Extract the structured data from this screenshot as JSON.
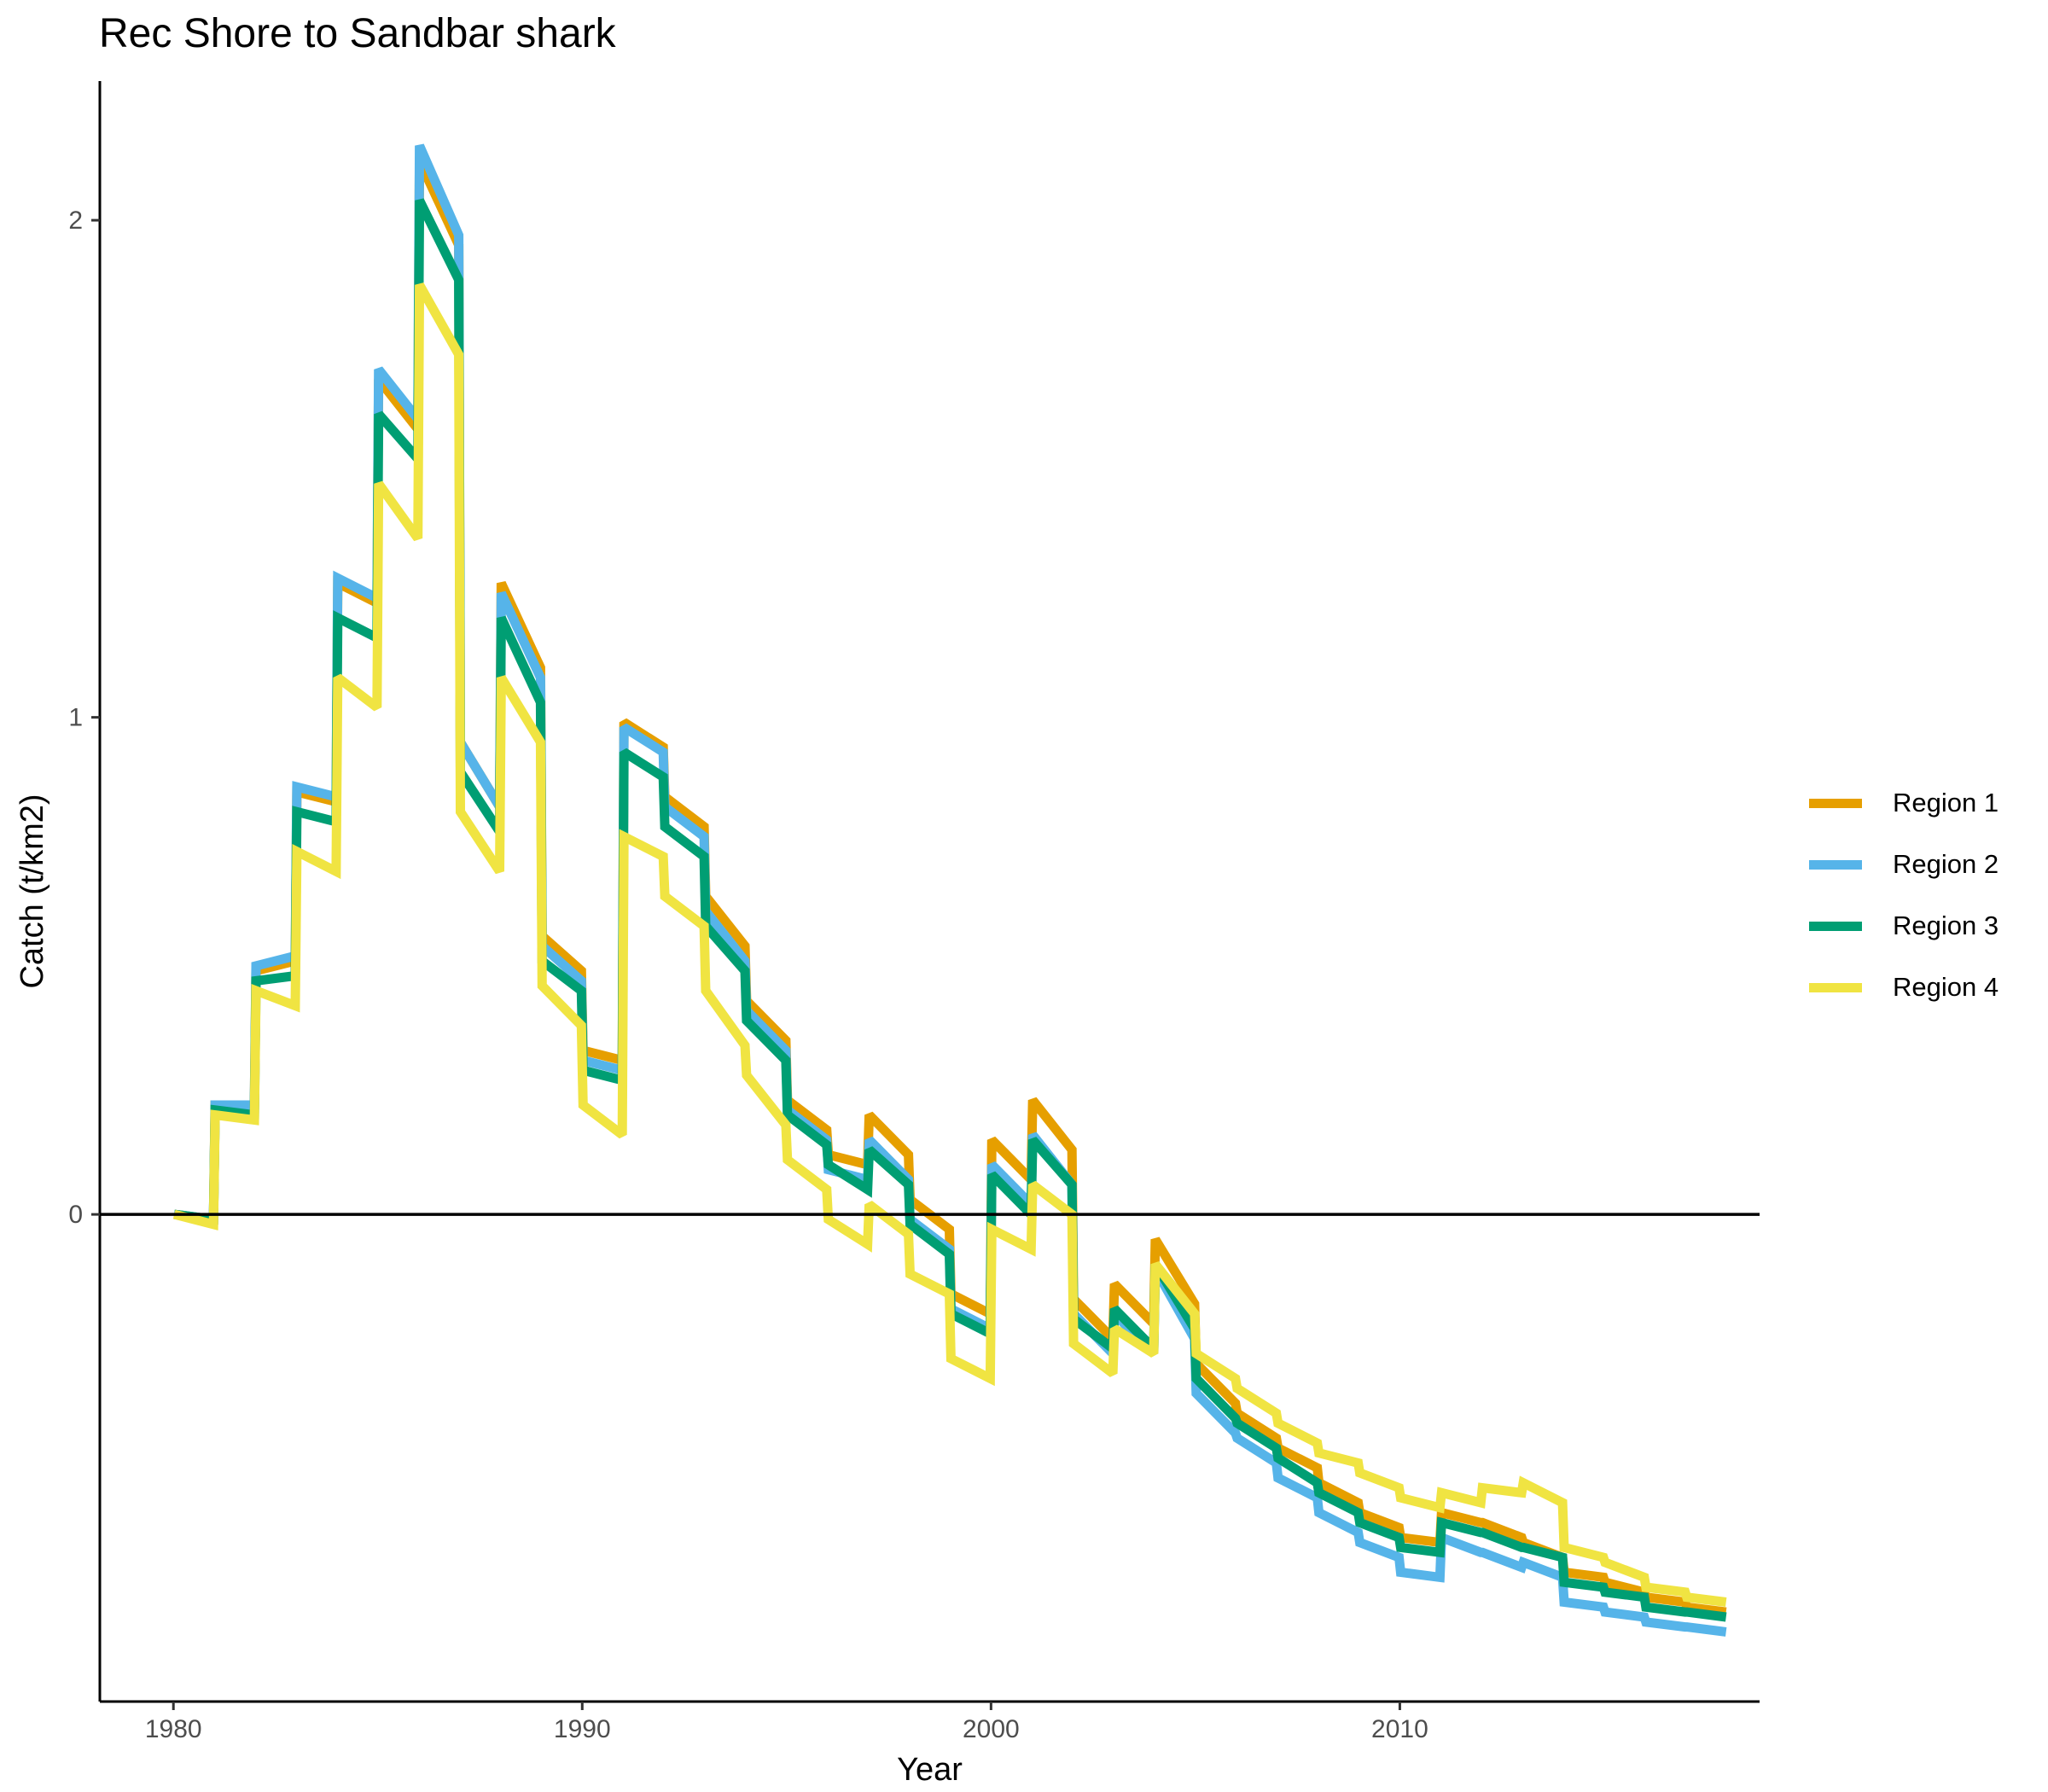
{
  "chart_data": {
    "type": "line",
    "title": "Rec Shore to Sandbar shark",
    "xlabel": "Year",
    "ylabel": "Catch (t/km2)",
    "xlim": [
      1978.2,
      2018.8
    ],
    "ylim": [
      -0.98,
      2.28
    ],
    "xticks": [
      1980,
      1990,
      2000,
      2010
    ],
    "yticks": [
      0,
      1,
      2
    ],
    "reference_line_y": 0,
    "legend_position": "right",
    "grid": false,
    "x": [
      1980,
      1981,
      1982,
      1983,
      1984,
      1985,
      1986,
      1987,
      1988,
      1989,
      1990,
      1991,
      1992,
      1993,
      1994,
      1995,
      1996,
      1997,
      1998,
      1999,
      2000,
      2001,
      2002,
      2003,
      2004,
      2005,
      2006,
      2007,
      2008,
      2009,
      2010,
      2011,
      2012,
      2013,
      2014,
      2015,
      2016,
      2017
    ],
    "series": [
      {
        "name": "Region 1",
        "color": "#E69F00",
        "start": [
          0,
          0.22,
          0.49,
          0.85,
          1.27,
          1.68,
          2.12,
          0.95,
          1.27,
          0.56,
          0.33,
          0.99,
          0.84,
          0.64,
          0.43,
          0.23,
          0.12,
          0.2,
          0.03,
          -0.16,
          0.15,
          0.23,
          -0.17,
          -0.14,
          -0.05,
          -0.3,
          -0.4,
          -0.47,
          -0.54,
          -0.6,
          -0.65,
          -0.6,
          -0.62,
          -0.66,
          -0.72,
          -0.74,
          -0.77,
          -0.79
        ],
        "end": [
          -0.01,
          0.22,
          0.51,
          0.83,
          1.23,
          1.58,
          1.95,
          0.82,
          1.1,
          0.49,
          0.31,
          0.94,
          0.78,
          0.54,
          0.35,
          0.17,
          0.1,
          0.12,
          -0.03,
          -0.2,
          0.07,
          0.13,
          -0.25,
          -0.22,
          -0.18,
          -0.38,
          -0.45,
          -0.51,
          -0.58,
          -0.63,
          -0.66,
          -0.62,
          -0.65,
          -0.69,
          -0.73,
          -0.76,
          -0.78,
          -0.8
        ]
      },
      {
        "name": "Region 2",
        "color": "#56B4E9",
        "start": [
          0,
          0.22,
          0.5,
          0.86,
          1.28,
          1.7,
          2.15,
          0.95,
          1.25,
          0.54,
          0.31,
          0.98,
          0.82,
          0.61,
          0.41,
          0.21,
          0.09,
          0.15,
          -0.01,
          -0.19,
          0.1,
          0.16,
          -0.2,
          -0.2,
          -0.11,
          -0.36,
          -0.45,
          -0.53,
          -0.6,
          -0.66,
          -0.72,
          -0.65,
          -0.68,
          -0.7,
          -0.78,
          -0.8,
          -0.82,
          -0.83
        ],
        "end": [
          -0.01,
          0.22,
          0.52,
          0.84,
          1.24,
          1.6,
          1.97,
          0.82,
          1.08,
          0.47,
          0.29,
          0.93,
          0.76,
          0.51,
          0.33,
          0.15,
          0.07,
          0.07,
          -0.07,
          -0.23,
          0.02,
          0.06,
          -0.28,
          -0.28,
          -0.25,
          -0.44,
          -0.5,
          -0.57,
          -0.64,
          -0.69,
          -0.73,
          -0.68,
          -0.71,
          -0.73,
          -0.79,
          -0.81,
          -0.83,
          -0.84
        ]
      },
      {
        "name": "Region 3",
        "color": "#009E73",
        "start": [
          0,
          0.21,
          0.47,
          0.81,
          1.2,
          1.61,
          2.04,
          0.89,
          1.2,
          0.51,
          0.29,
          0.93,
          0.78,
          0.58,
          0.39,
          0.2,
          0.1,
          0.13,
          -0.02,
          -0.2,
          0.08,
          0.15,
          -0.21,
          -0.19,
          -0.1,
          -0.33,
          -0.42,
          -0.49,
          -0.56,
          -0.62,
          -0.67,
          -0.62,
          -0.64,
          -0.67,
          -0.74,
          -0.76,
          -0.79,
          -0.8
        ],
        "end": [
          -0.01,
          0.2,
          0.48,
          0.79,
          1.16,
          1.52,
          1.88,
          0.77,
          1.03,
          0.45,
          0.27,
          0.88,
          0.72,
          0.49,
          0.31,
          0.14,
          0.05,
          0.06,
          -0.08,
          -0.24,
          0,
          0.06,
          -0.27,
          -0.27,
          -0.23,
          -0.41,
          -0.47,
          -0.54,
          -0.6,
          -0.65,
          -0.68,
          -0.64,
          -0.67,
          -0.69,
          -0.75,
          -0.77,
          -0.8,
          -0.81
        ]
      },
      {
        "name": "Region 4",
        "color": "#F0E442",
        "start": [
          0,
          0.2,
          0.45,
          0.73,
          1.08,
          1.47,
          1.87,
          0.81,
          1.08,
          0.46,
          0.22,
          0.76,
          0.64,
          0.45,
          0.28,
          0.11,
          -0.01,
          0.02,
          -0.12,
          -0.29,
          -0.03,
          0.06,
          -0.26,
          -0.23,
          -0.1,
          -0.28,
          -0.35,
          -0.42,
          -0.48,
          -0.52,
          -0.57,
          -0.56,
          -0.55,
          -0.54,
          -0.67,
          -0.7,
          -0.75,
          -0.77
        ],
        "end": [
          -0.02,
          0.19,
          0.42,
          0.69,
          1.02,
          1.36,
          1.73,
          0.69,
          0.95,
          0.38,
          0.16,
          0.72,
          0.58,
          0.34,
          0.18,
          0.05,
          -0.06,
          -0.04,
          -0.16,
          -0.33,
          -0.07,
          0,
          -0.32,
          -0.28,
          -0.2,
          -0.33,
          -0.4,
          -0.46,
          -0.5,
          -0.55,
          -0.59,
          -0.58,
          -0.56,
          -0.58,
          -0.69,
          -0.73,
          -0.76,
          -0.78
        ]
      }
    ]
  }
}
